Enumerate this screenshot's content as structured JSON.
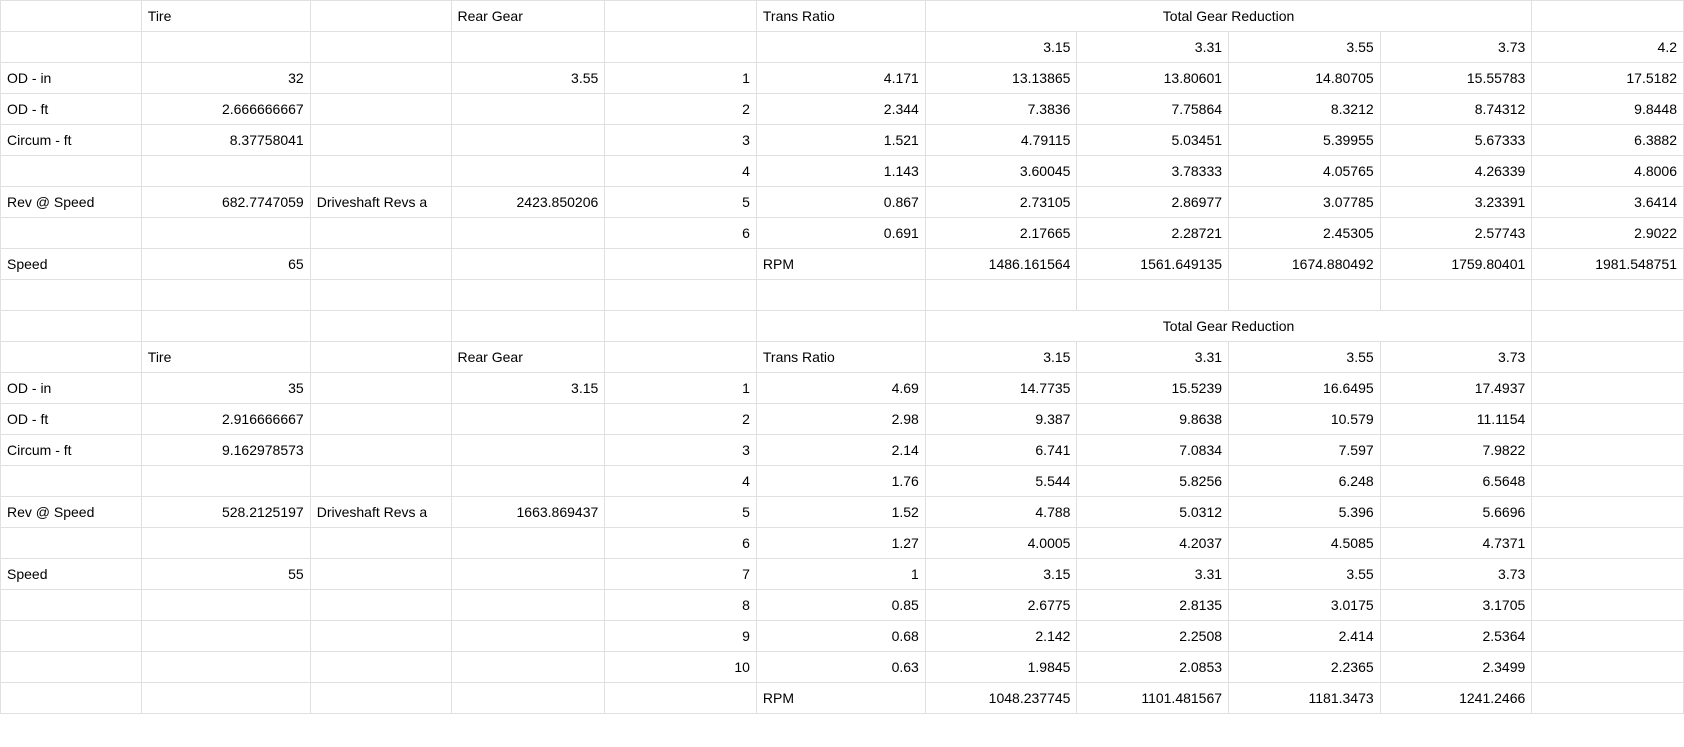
{
  "colors": {
    "border": "#e0e0e0",
    "background": "#ffffff",
    "text": "#000000"
  },
  "typography": {
    "font_family": "Arial",
    "font_size_pt": 11
  },
  "col_widths": {
    "A": 130,
    "B": 156,
    "C": 130,
    "D": 142,
    "E": 140,
    "F": 156,
    "G": 140,
    "H": 140,
    "I": 140,
    "J": 140,
    "K": 140
  },
  "block1": {
    "header": {
      "tire": "Tire",
      "rear_gear": "Rear Gear",
      "trans_ratio": "Trans Ratio",
      "total_gear_reduction": "Total Gear Reduction"
    },
    "ratio_header": [
      "3.15",
      "3.31",
      "3.55",
      "3.73",
      "4.2"
    ],
    "rows": [
      {
        "label": "OD - in",
        "b": "32",
        "d": "3.55",
        "e": "1",
        "f": "4.171",
        "g": "13.13865",
        "h": "13.80601",
        "i": "14.80705",
        "j": "15.55783",
        "k": "17.5182"
      },
      {
        "label": "OD - ft",
        "b": "2.666666667",
        "d": "",
        "e": "2",
        "f": "2.344",
        "g": "7.3836",
        "h": "7.75864",
        "i": "8.3212",
        "j": "8.74312",
        "k": "9.8448"
      },
      {
        "label": "Circum - ft",
        "b": "8.37758041",
        "d": "",
        "e": "3",
        "f": "1.521",
        "g": "4.79115",
        "h": "5.03451",
        "i": "5.39955",
        "j": "5.67333",
        "k": "6.3882"
      },
      {
        "label": "",
        "b": "",
        "d": "",
        "e": "4",
        "f": "1.143",
        "g": "3.60045",
        "h": "3.78333",
        "i": "4.05765",
        "j": "4.26339",
        "k": "4.8006"
      },
      {
        "label": "Rev @ Speed",
        "b": "682.7747059",
        "c": "Driveshaft Revs a",
        "d": "2423.850206",
        "e": "5",
        "f": "0.867",
        "g": "2.73105",
        "h": "2.86977",
        "i": "3.07785",
        "j": "3.23391",
        "k": "3.6414"
      },
      {
        "label": "",
        "b": "",
        "d": "",
        "e": "6",
        "f": "0.691",
        "g": "2.17665",
        "h": "2.28721",
        "i": "2.45305",
        "j": "2.57743",
        "k": "2.9022"
      },
      {
        "label": "Speed",
        "b": "65",
        "d": "",
        "e": "",
        "f": "RPM",
        "g": "1486.161564",
        "h": "1561.649135",
        "i": "1674.880492",
        "j": "1759.80401",
        "k": "1981.548751"
      }
    ]
  },
  "block2": {
    "header": {
      "tire": "Tire",
      "rear_gear": "Rear Gear",
      "trans_ratio": "Trans Ratio",
      "total_gear_reduction": "Total Gear Reduction"
    },
    "ratio_header": [
      "3.15",
      "3.31",
      "3.55",
      "3.73"
    ],
    "rows": [
      {
        "label": "OD - in",
        "b": "35",
        "d": "3.15",
        "e": "1",
        "f": "4.69",
        "g": "14.7735",
        "h": "15.5239",
        "i": "16.6495",
        "j": "17.4937"
      },
      {
        "label": "OD - ft",
        "b": "2.916666667",
        "d": "",
        "e": "2",
        "f": "2.98",
        "g": "9.387",
        "h": "9.8638",
        "i": "10.579",
        "j": "11.1154"
      },
      {
        "label": "Circum - ft",
        "b": "9.162978573",
        "d": "",
        "e": "3",
        "f": "2.14",
        "g": "6.741",
        "h": "7.0834",
        "i": "7.597",
        "j": "7.9822"
      },
      {
        "label": "",
        "b": "",
        "d": "",
        "e": "4",
        "f": "1.76",
        "g": "5.544",
        "h": "5.8256",
        "i": "6.248",
        "j": "6.5648"
      },
      {
        "label": "Rev @ Speed",
        "b": "528.2125197",
        "c": "Driveshaft Revs a",
        "d": "1663.869437",
        "e": "5",
        "f": "1.52",
        "g": "4.788",
        "h": "5.0312",
        "i": "5.396",
        "j": "5.6696"
      },
      {
        "label": "",
        "b": "",
        "d": "",
        "e": "6",
        "f": "1.27",
        "g": "4.0005",
        "h": "4.2037",
        "i": "4.5085",
        "j": "4.7371"
      },
      {
        "label": "Speed",
        "b": "55",
        "d": "",
        "e": "7",
        "f": "1",
        "g": "3.15",
        "h": "3.31",
        "i": "3.55",
        "j": "3.73"
      },
      {
        "label": "",
        "b": "",
        "d": "",
        "e": "8",
        "f": "0.85",
        "g": "2.6775",
        "h": "2.8135",
        "i": "3.0175",
        "j": "3.1705"
      },
      {
        "label": "",
        "b": "",
        "d": "",
        "e": "9",
        "f": "0.68",
        "g": "2.142",
        "h": "2.2508",
        "i": "2.414",
        "j": "2.5364"
      },
      {
        "label": "",
        "b": "",
        "d": "",
        "e": "10",
        "f": "0.63",
        "g": "1.9845",
        "h": "2.0853",
        "i": "2.2365",
        "j": "2.3499"
      },
      {
        "label": "",
        "b": "",
        "d": "",
        "e": "",
        "f": "RPM",
        "g": "1048.237745",
        "h": "1101.481567",
        "i": "1181.3473",
        "j": "1241.2466"
      }
    ]
  }
}
